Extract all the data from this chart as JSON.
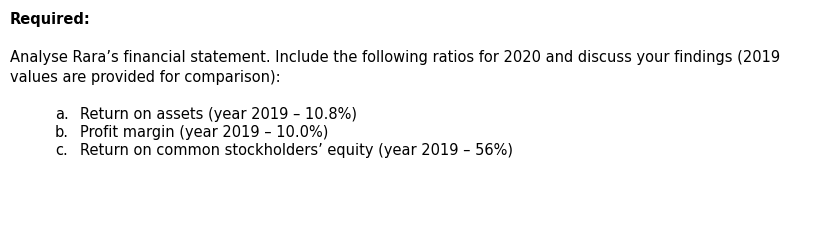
{
  "required_label": "Required:",
  "para_line1": "Analyse Rara’s financial statement. Include the following ratios for 2020 and discuss your findings (2019",
  "para_line2": "values are provided for comparison):",
  "items": [
    [
      "a.",
      "Return on assets (year 2019 – 10.8%)"
    ],
    [
      "b.",
      "Profit margin (year 2019 – 10.0%)"
    ],
    [
      "c.",
      "Return on common stockholders’ equity (year 2019 – 56%)"
    ]
  ],
  "background_color": "#ffffff",
  "text_color": "#000000",
  "font_size": 10.5
}
